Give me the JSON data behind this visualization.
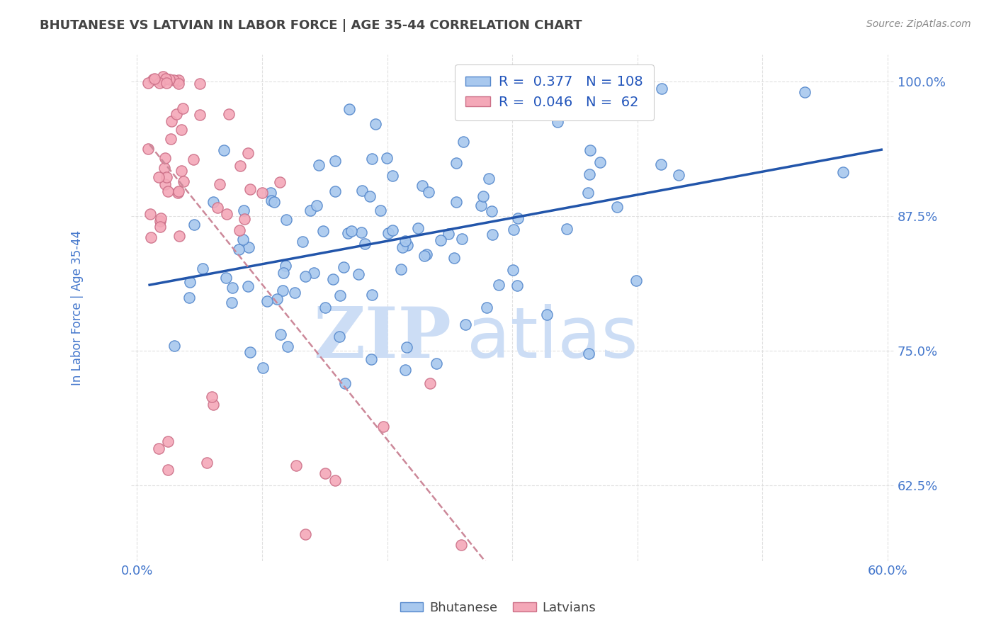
{
  "title": "BHUTANESE VS LATVIAN IN LABOR FORCE | AGE 35-44 CORRELATION CHART",
  "source": "Source: ZipAtlas.com",
  "ylabel": "In Labor Force | Age 35-44",
  "watermark_zip": "ZIP",
  "watermark_atlas": "atlas",
  "xlim": [
    -0.005,
    0.605
  ],
  "ylim": [
    0.555,
    1.025
  ],
  "yticks": [
    0.625,
    0.75,
    0.875,
    1.0
  ],
  "ytick_labels": [
    "62.5%",
    "75.0%",
    "87.5%",
    "100.0%"
  ],
  "xticks": [
    0.0,
    0.1,
    0.2,
    0.3,
    0.4,
    0.5,
    0.6
  ],
  "xtick_labels": [
    "0.0%",
    "",
    "",
    "",
    "",
    "",
    "60.0%"
  ],
  "blue_R": 0.377,
  "blue_N": 108,
  "pink_R": 0.046,
  "pink_N": 62,
  "blue_color": "#A8C8EE",
  "pink_color": "#F4A8B8",
  "blue_edge_color": "#5588CC",
  "pink_edge_color": "#CC7088",
  "blue_line_color": "#2255AA",
  "pink_line_color": "#CC8899",
  "legend_text_color": "#2255BB",
  "title_color": "#444444",
  "axis_color": "#4477CC",
  "grid_color": "#DDDDDD",
  "watermark_color": "#CCDDF5"
}
